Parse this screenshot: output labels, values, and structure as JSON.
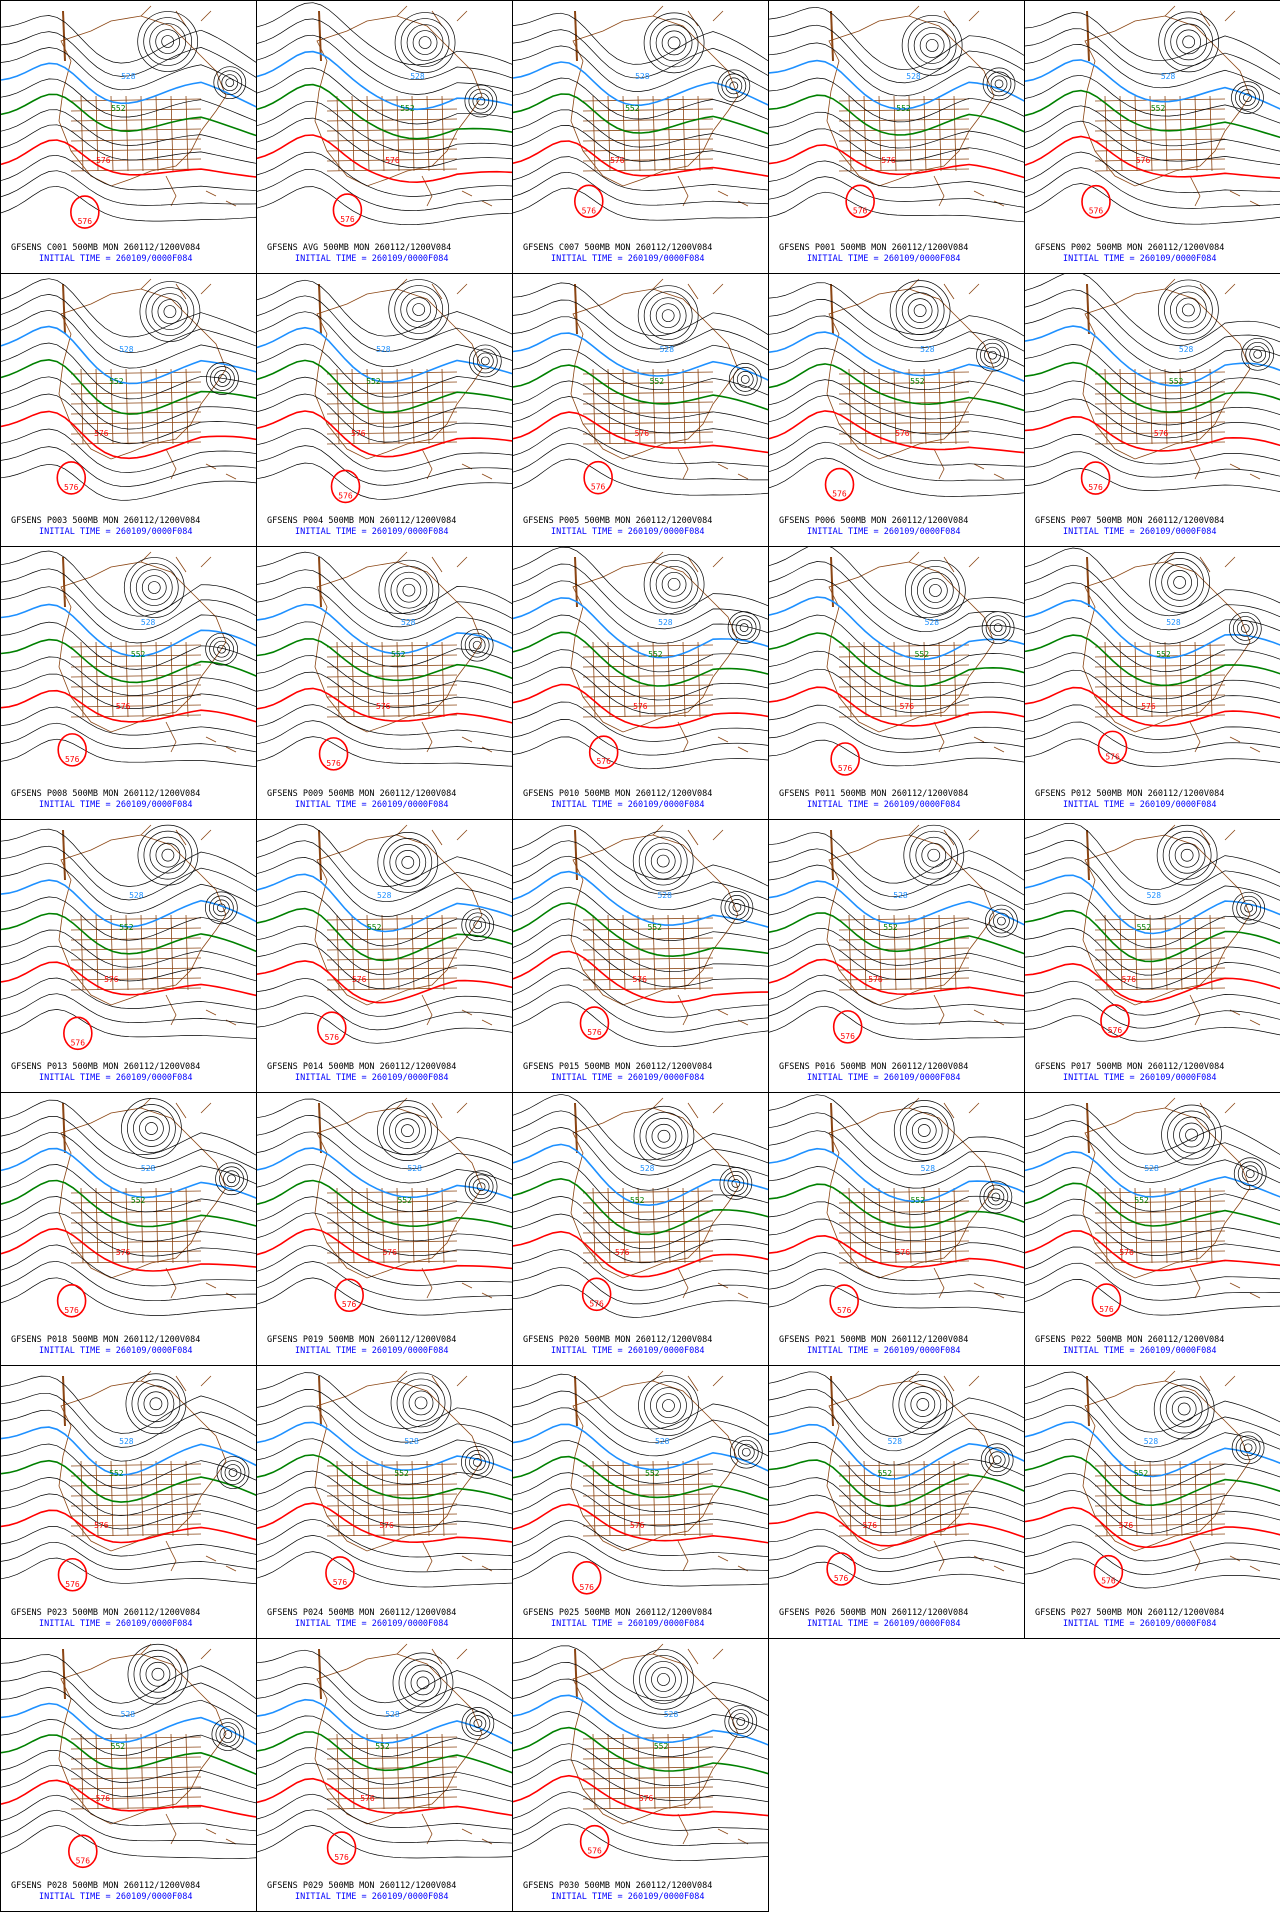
{
  "panels": [
    {
      "title": "GFSENS C001 500MB MON 260112/1200V084",
      "initial_time": "INITIAL TIME = 260109/0000F084",
      "contour_labels": [
        "528",
        "552",
        "576",
        "576"
      ]
    },
    {
      "title": "GFSENS AVG 500MB MON 260112/1200V084",
      "initial_time": "INITIAL TIME = 260109/0000F084",
      "contour_labels": [
        "528",
        "552",
        "576",
        "576"
      ]
    },
    {
      "title": "GFSENS C007 500MB MON 260112/1200V084",
      "initial_time": "INITIAL TIME = 260109/0000F084",
      "contour_labels": [
        "528",
        "552",
        "576",
        "576"
      ]
    },
    {
      "title": "GFSENS P001 500MB MON 260112/1200V084",
      "initial_time": "INITIAL TIME = 260109/0000F084",
      "contour_labels": [
        "528",
        "552",
        "576",
        "576"
      ]
    },
    {
      "title": "GFSENS P002 500MB MON 260112/1200V084",
      "initial_time": "INITIAL TIME = 260109/0000F084",
      "contour_labels": [
        "528",
        "552",
        "576",
        "576"
      ]
    },
    {
      "title": "GFSENS P003 500MB MON 260112/1200V084",
      "initial_time": "INITIAL TIME = 260109/0000F084",
      "contour_labels": [
        "528",
        "552",
        "576",
        "576"
      ]
    },
    {
      "title": "GFSENS P004 500MB MON 260112/1200V084",
      "initial_time": "INITIAL TIME = 260109/0000F084",
      "contour_labels": [
        "528",
        "552",
        "576",
        "576"
      ]
    },
    {
      "title": "GFSENS P005 500MB MON 260112/1200V084",
      "initial_time": "INITIAL TIME = 260109/0000F084",
      "contour_labels": [
        "528",
        "552",
        "576",
        "576"
      ]
    },
    {
      "title": "GFSENS P006 500MB MON 260112/1200V084",
      "initial_time": "INITIAL TIME = 260109/0000F084",
      "contour_labels": [
        "528",
        "552",
        "576",
        "576"
      ]
    },
    {
      "title": "GFSENS P007 500MB MON 260112/1200V084",
      "initial_time": "INITIAL TIME = 260109/0000F084",
      "contour_labels": [
        "528",
        "552",
        "576",
        "576"
      ]
    },
    {
      "title": "GFSENS P008 500MB MON 260112/1200V084",
      "initial_time": "INITIAL TIME = 260109/0000F084",
      "contour_labels": [
        "528",
        "552",
        "576",
        "576"
      ]
    },
    {
      "title": "GFSENS P009 500MB MON 260112/1200V084",
      "initial_time": "INITIAL TIME = 260109/0000F084",
      "contour_labels": [
        "528",
        "552",
        "576",
        "576"
      ]
    },
    {
      "title": "GFSENS P010 500MB MON 260112/1200V084",
      "initial_time": "INITIAL TIME = 260109/0000F084",
      "contour_labels": [
        "528",
        "552",
        "576",
        "576"
      ]
    },
    {
      "title": "GFSENS P011 500MB MON 260112/1200V084",
      "initial_time": "INITIAL TIME = 260109/0000F084",
      "contour_labels": [
        "528",
        "552",
        "576",
        "576"
      ]
    },
    {
      "title": "GFSENS P012 500MB MON 260112/1200V084",
      "initial_time": "INITIAL TIME = 260109/0000F084",
      "contour_labels": [
        "528",
        "552",
        "576",
        "576"
      ]
    },
    {
      "title": "GFSENS P013 500MB MON 260112/1200V084",
      "initial_time": "INITIAL TIME = 260109/0000F084",
      "contour_labels": [
        "528",
        "552",
        "576",
        "576"
      ]
    },
    {
      "title": "GFSENS P014 500MB MON 260112/1200V084",
      "initial_time": "INITIAL TIME = 260109/0000F084",
      "contour_labels": [
        "528",
        "552",
        "576",
        "576"
      ]
    },
    {
      "title": "GFSENS P015 500MB MON 260112/1200V084",
      "initial_time": "INITIAL TIME = 260109/0000F084",
      "contour_labels": [
        "528",
        "552",
        "576",
        "576"
      ]
    },
    {
      "title": "GFSENS P016 500MB MON 260112/1200V084",
      "initial_time": "INITIAL TIME = 260109/0000F084",
      "contour_labels": [
        "528",
        "552",
        "576",
        "576"
      ]
    },
    {
      "title": "GFSENS P017 500MB MON 260112/1200V084",
      "initial_time": "INITIAL TIME = 260109/0000F084",
      "contour_labels": [
        "528",
        "552",
        "576",
        "576"
      ]
    },
    {
      "title": "GFSENS P018 500MB MON 260112/1200V084",
      "initial_time": "INITIAL TIME = 260109/0000F084",
      "contour_labels": [
        "528",
        "552",
        "576",
        "576"
      ]
    },
    {
      "title": "GFSENS P019 500MB MON 260112/1200V084",
      "initial_time": "INITIAL TIME = 260109/0000F084",
      "contour_labels": [
        "528",
        "552",
        "576",
        "576"
      ]
    },
    {
      "title": "GFSENS P020 500MB MON 260112/1200V084",
      "initial_time": "INITIAL TIME = 260109/0000F084",
      "contour_labels": [
        "528",
        "552",
        "576",
        "576"
      ]
    },
    {
      "title": "GFSENS P021 500MB MON 260112/1200V084",
      "initial_time": "INITIAL TIME = 260109/0000F084",
      "contour_labels": [
        "528",
        "552",
        "576",
        "576"
      ]
    },
    {
      "title": "GFSENS P022 500MB MON 260112/1200V084",
      "initial_time": "INITIAL TIME = 260109/0000F084",
      "contour_labels": [
        "528",
        "552",
        "576",
        "576"
      ]
    },
    {
      "title": "GFSENS P023 500MB MON 260112/1200V084",
      "initial_time": "INITIAL TIME = 260109/0000F084",
      "contour_labels": [
        "528",
        "552",
        "576",
        "576"
      ]
    },
    {
      "title": "GFSENS P024 500MB MON 260112/1200V084",
      "initial_time": "INITIAL TIME = 260109/0000F084",
      "contour_labels": [
        "528",
        "552",
        "576",
        "576"
      ]
    },
    {
      "title": "GFSENS P025 500MB MON 260112/1200V084",
      "initial_time": "INITIAL TIME = 260109/0000F084",
      "contour_labels": [
        "528",
        "552",
        "576",
        "576"
      ]
    },
    {
      "title": "GFSENS P026 500MB MON 260112/1200V084",
      "initial_time": "INITIAL TIME = 260109/0000F084",
      "contour_labels": [
        "528",
        "552",
        "576",
        "576"
      ]
    },
    {
      "title": "GFSENS P027 500MB MON 260112/1200V084",
      "initial_time": "INITIAL TIME = 260109/0000F084",
      "contour_labels": [
        "528",
        "552",
        "576",
        "576"
      ]
    },
    {
      "title": "GFSENS P028 500MB MON 260112/1200V084",
      "initial_time": "INITIAL TIME = 260109/0000F084",
      "contour_labels": [
        "528",
        "552",
        "576",
        "576"
      ]
    },
    {
      "title": "GFSENS P029 500MB MON 260112/1200V084",
      "initial_time": "INITIAL TIME = 260109/0000F084",
      "contour_labels": [
        "528",
        "552",
        "576",
        "576"
      ]
    },
    {
      "title": "GFSENS P030 500MB MON 260112/1200V084",
      "initial_time": "INITIAL TIME = 260109/0000F084",
      "contour_labels": [
        "528",
        "552",
        "576",
        "576"
      ]
    }
  ]
}
